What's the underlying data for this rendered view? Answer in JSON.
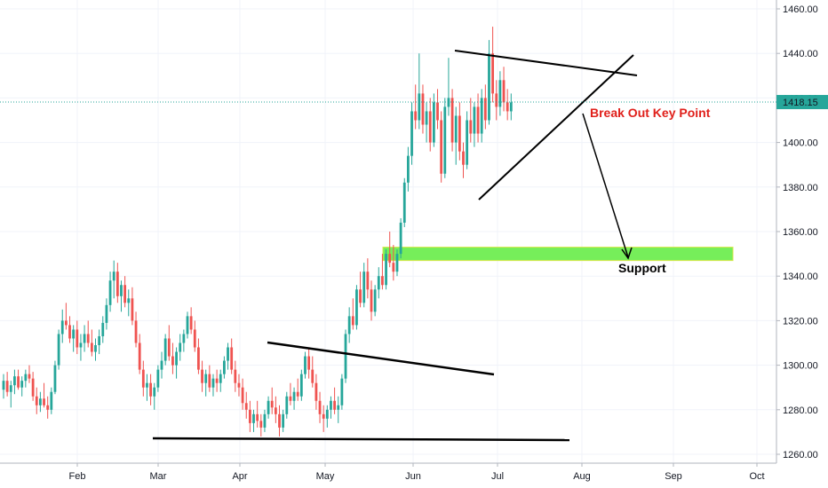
{
  "chart_data": {
    "type": "candlestick",
    "title": "",
    "xlabel": "",
    "ylabel": "",
    "x_tick_labels": [
      "Feb",
      "Mar",
      "Apr",
      "May",
      "Jun",
      "Jul",
      "Aug",
      "Sep",
      "Oct"
    ],
    "y_tick_labels": [
      "1260.00",
      "1280.00",
      "1300.00",
      "1320.00",
      "1340.00",
      "1360.00",
      "1380.00",
      "1400.00",
      "1420.00",
      "1440.00",
      "1460.00"
    ],
    "ylim": [
      1256,
      1464
    ],
    "grid": true,
    "colors": {
      "up": "#26a69a",
      "down": "#ef5350",
      "price_line": "#26a69a",
      "support_zone": "#76ee5a",
      "trendline": "#000000",
      "annotation_red": "#e0201b"
    },
    "last_price": "1418.15",
    "candles": [
      [
        1289,
        1296,
        1285,
        1293
      ],
      [
        1293,
        1297,
        1286,
        1288
      ],
      [
        1288,
        1293,
        1281,
        1291
      ],
      [
        1291,
        1298,
        1287,
        1295
      ],
      [
        1295,
        1298,
        1289,
        1290
      ],
      [
        1290,
        1295,
        1286,
        1293
      ],
      [
        1293,
        1298,
        1290,
        1296
      ],
      [
        1296,
        1300,
        1292,
        1294
      ],
      [
        1294,
        1297,
        1284,
        1286
      ],
      [
        1286,
        1290,
        1278,
        1282
      ],
      [
        1282,
        1288,
        1279,
        1285
      ],
      [
        1285,
        1292,
        1281,
        1282
      ],
      [
        1282,
        1286,
        1276,
        1280
      ],
      [
        1280,
        1290,
        1278,
        1288
      ],
      [
        1288,
        1302,
        1287,
        1300
      ],
      [
        1300,
        1316,
        1298,
        1314
      ],
      [
        1314,
        1325,
        1310,
        1320
      ],
      [
        1320,
        1328,
        1316,
        1318
      ],
      [
        1318,
        1322,
        1310,
        1312
      ],
      [
        1312,
        1318,
        1306,
        1316
      ],
      [
        1316,
        1320,
        1305,
        1308
      ],
      [
        1308,
        1314,
        1302,
        1310
      ],
      [
        1310,
        1318,
        1306,
        1314
      ],
      [
        1314,
        1320,
        1308,
        1310
      ],
      [
        1310,
        1316,
        1304,
        1306
      ],
      [
        1306,
        1312,
        1302,
        1309
      ],
      [
        1309,
        1316,
        1305,
        1313
      ],
      [
        1313,
        1322,
        1310,
        1319
      ],
      [
        1319,
        1330,
        1316,
        1327
      ],
      [
        1327,
        1342,
        1324,
        1338
      ],
      [
        1338,
        1347,
        1330,
        1342
      ],
      [
        1342,
        1346,
        1328,
        1331
      ],
      [
        1331,
        1338,
        1324,
        1336
      ],
      [
        1336,
        1340,
        1326,
        1328
      ],
      [
        1328,
        1334,
        1322,
        1330
      ],
      [
        1330,
        1335,
        1318,
        1320
      ],
      [
        1320,
        1324,
        1308,
        1310
      ],
      [
        1310,
        1314,
        1296,
        1298
      ],
      [
        1298,
        1302,
        1286,
        1290
      ],
      [
        1290,
        1296,
        1284,
        1292
      ],
      [
        1292,
        1296,
        1282,
        1286
      ],
      [
        1286,
        1292,
        1280,
        1290
      ],
      [
        1290,
        1300,
        1288,
        1298
      ],
      [
        1298,
        1306,
        1294,
        1302
      ],
      [
        1302,
        1314,
        1300,
        1312
      ],
      [
        1312,
        1318,
        1302,
        1304
      ],
      [
        1304,
        1310,
        1296,
        1300
      ],
      [
        1300,
        1308,
        1294,
        1306
      ],
      [
        1306,
        1314,
        1302,
        1310
      ],
      [
        1310,
        1316,
        1306,
        1314
      ],
      [
        1314,
        1324,
        1312,
        1322
      ],
      [
        1322,
        1326,
        1314,
        1316
      ],
      [
        1316,
        1320,
        1306,
        1308
      ],
      [
        1308,
        1312,
        1296,
        1298
      ],
      [
        1298,
        1302,
        1288,
        1292
      ],
      [
        1292,
        1298,
        1286,
        1296
      ],
      [
        1296,
        1300,
        1288,
        1290
      ],
      [
        1290,
        1296,
        1286,
        1294
      ],
      [
        1294,
        1298,
        1288,
        1292
      ],
      [
        1292,
        1298,
        1288,
        1296
      ],
      [
        1296,
        1304,
        1294,
        1302
      ],
      [
        1302,
        1310,
        1298,
        1308
      ],
      [
        1308,
        1312,
        1296,
        1298
      ],
      [
        1298,
        1302,
        1288,
        1292
      ],
      [
        1292,
        1296,
        1286,
        1290
      ],
      [
        1290,
        1294,
        1280,
        1283
      ],
      [
        1283,
        1288,
        1276,
        1280
      ],
      [
        1280,
        1284,
        1270,
        1274
      ],
      [
        1274,
        1280,
        1270,
        1278
      ],
      [
        1278,
        1284,
        1272,
        1275
      ],
      [
        1275,
        1278,
        1268,
        1272
      ],
      [
        1272,
        1280,
        1270,
        1278
      ],
      [
        1278,
        1286,
        1276,
        1284
      ],
      [
        1284,
        1290,
        1278,
        1281
      ],
      [
        1281,
        1286,
        1274,
        1278
      ],
      [
        1278,
        1282,
        1268,
        1272
      ],
      [
        1272,
        1280,
        1270,
        1278
      ],
      [
        1278,
        1288,
        1276,
        1286
      ],
      [
        1286,
        1292,
        1282,
        1284
      ],
      [
        1284,
        1290,
        1280,
        1288
      ],
      [
        1288,
        1294,
        1284,
        1286
      ],
      [
        1286,
        1298,
        1284,
        1296
      ],
      [
        1296,
        1306,
        1294,
        1304
      ],
      [
        1304,
        1308,
        1294,
        1298
      ],
      [
        1298,
        1304,
        1290,
        1292
      ],
      [
        1292,
        1296,
        1280,
        1284
      ],
      [
        1284,
        1288,
        1274,
        1278
      ],
      [
        1278,
        1282,
        1270,
        1276
      ],
      [
        1276,
        1282,
        1272,
        1280
      ],
      [
        1280,
        1286,
        1276,
        1284
      ],
      [
        1284,
        1290,
        1278,
        1280
      ],
      [
        1280,
        1286,
        1274,
        1282
      ],
      [
        1282,
        1296,
        1280,
        1294
      ],
      [
        1294,
        1316,
        1292,
        1314
      ],
      [
        1314,
        1326,
        1310,
        1322
      ],
      [
        1322,
        1330,
        1316,
        1318
      ],
      [
        1318,
        1336,
        1316,
        1334
      ],
      [
        1334,
        1342,
        1326,
        1328
      ],
      [
        1328,
        1346,
        1326,
        1342
      ],
      [
        1342,
        1348,
        1330,
        1334
      ],
      [
        1334,
        1338,
        1320,
        1324
      ],
      [
        1324,
        1336,
        1322,
        1334
      ],
      [
        1334,
        1344,
        1330,
        1340
      ],
      [
        1340,
        1350,
        1334,
        1336
      ],
      [
        1336,
        1352,
        1334,
        1350
      ],
      [
        1350,
        1360,
        1344,
        1346
      ],
      [
        1346,
        1354,
        1338,
        1342
      ],
      [
        1342,
        1352,
        1340,
        1350
      ],
      [
        1350,
        1366,
        1348,
        1364
      ],
      [
        1364,
        1384,
        1362,
        1382
      ],
      [
        1382,
        1398,
        1378,
        1394
      ],
      [
        1394,
        1418,
        1390,
        1414
      ],
      [
        1414,
        1426,
        1406,
        1410
      ],
      [
        1410,
        1440,
        1406,
        1422
      ],
      [
        1422,
        1426,
        1404,
        1408
      ],
      [
        1408,
        1418,
        1400,
        1414
      ],
      [
        1414,
        1420,
        1396,
        1400
      ],
      [
        1400,
        1422,
        1398,
        1418
      ],
      [
        1418,
        1424,
        1406,
        1410
      ],
      [
        1410,
        1414,
        1382,
        1386
      ],
      [
        1386,
        1420,
        1384,
        1416
      ],
      [
        1416,
        1438,
        1412,
        1420
      ],
      [
        1420,
        1424,
        1396,
        1400
      ],
      [
        1400,
        1416,
        1390,
        1412
      ],
      [
        1412,
        1418,
        1392,
        1396
      ],
      [
        1396,
        1400,
        1384,
        1390
      ],
      [
        1390,
        1414,
        1388,
        1410
      ],
      [
        1410,
        1420,
        1400,
        1404
      ],
      [
        1404,
        1418,
        1398,
        1416
      ],
      [
        1416,
        1422,
        1400,
        1404
      ],
      [
        1404,
        1424,
        1400,
        1420
      ],
      [
        1420,
        1426,
        1406,
        1410
      ],
      [
        1410,
        1446,
        1408,
        1440
      ],
      [
        1440,
        1452,
        1418,
        1422
      ],
      [
        1422,
        1428,
        1410,
        1416
      ],
      [
        1416,
        1432,
        1412,
        1428
      ],
      [
        1428,
        1434,
        1414,
        1418
      ],
      [
        1418,
        1424,
        1410,
        1414
      ],
      [
        1414,
        1422,
        1410,
        1418
      ]
    ],
    "annotations": [
      {
        "label": "Break Out Key Point",
        "color": "#e0201b"
      },
      {
        "label": "Support",
        "color": "#000000"
      }
    ]
  }
}
